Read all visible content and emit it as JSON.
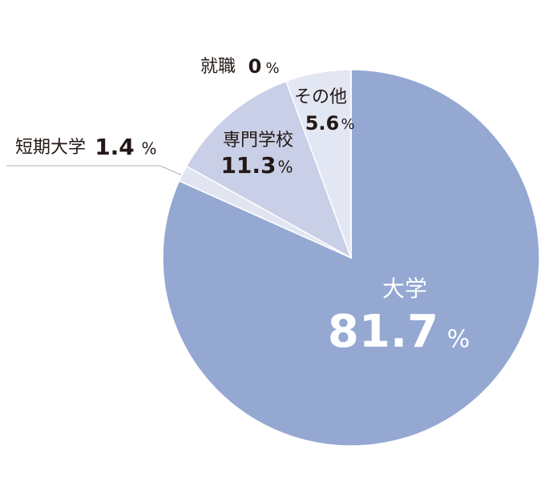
{
  "chart_data": {
    "type": "pie",
    "categories": [
      "大学",
      "短期大学",
      "専門学校",
      "その他",
      "就職"
    ],
    "values": [
      81.7,
      1.4,
      11.3,
      5.6,
      0
    ],
    "unit": "%",
    "colors": [
      "#94a8d2",
      "#e1e5f1",
      "#c9cfe6",
      "#e3e7f3",
      "#e3e7f3"
    ]
  }
}
